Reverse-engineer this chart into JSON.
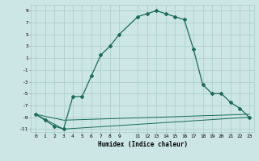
{
  "xlabel": "Humidex (Indice chaleur)",
  "ylabel": "",
  "background_color": "#cce5e5",
  "grid_color": "#aacccc",
  "line_color": "#1a6b5a",
  "xlim": [
    -0.5,
    23.5
  ],
  "ylim": [
    -11.5,
    10.0
  ],
  "xticks": [
    0,
    1,
    2,
    3,
    4,
    5,
    6,
    7,
    8,
    9,
    11,
    12,
    13,
    14,
    15,
    16,
    17,
    18,
    19,
    20,
    21,
    22,
    23
  ],
  "yticks": [
    -11,
    -9,
    -7,
    -5,
    -3,
    -1,
    1,
    3,
    5,
    7,
    9
  ],
  "curve1_x": [
    0,
    1,
    2,
    3,
    4,
    5,
    6,
    7,
    8,
    9,
    11,
    12,
    13,
    14,
    15,
    16,
    17,
    18,
    19,
    20,
    21,
    22,
    23
  ],
  "curve1_y": [
    -8.5,
    -9.5,
    -10.5,
    -11.0,
    -5.5,
    -5.5,
    -2.0,
    1.5,
    3.0,
    5.0,
    8.0,
    8.5,
    9.0,
    8.5,
    8.0,
    7.5,
    2.5,
    -3.5,
    -5.0,
    -5.0,
    -6.5,
    -7.5,
    -9.0
  ],
  "curve2_x": [
    0,
    3,
    23
  ],
  "curve2_y": [
    -8.5,
    -11.0,
    -9.0
  ],
  "curve3_x": [
    0,
    3,
    23
  ],
  "curve3_y": [
    -8.5,
    -9.5,
    -8.5
  ],
  "figsize": [
    3.2,
    2.0
  ],
  "dpi": 100
}
